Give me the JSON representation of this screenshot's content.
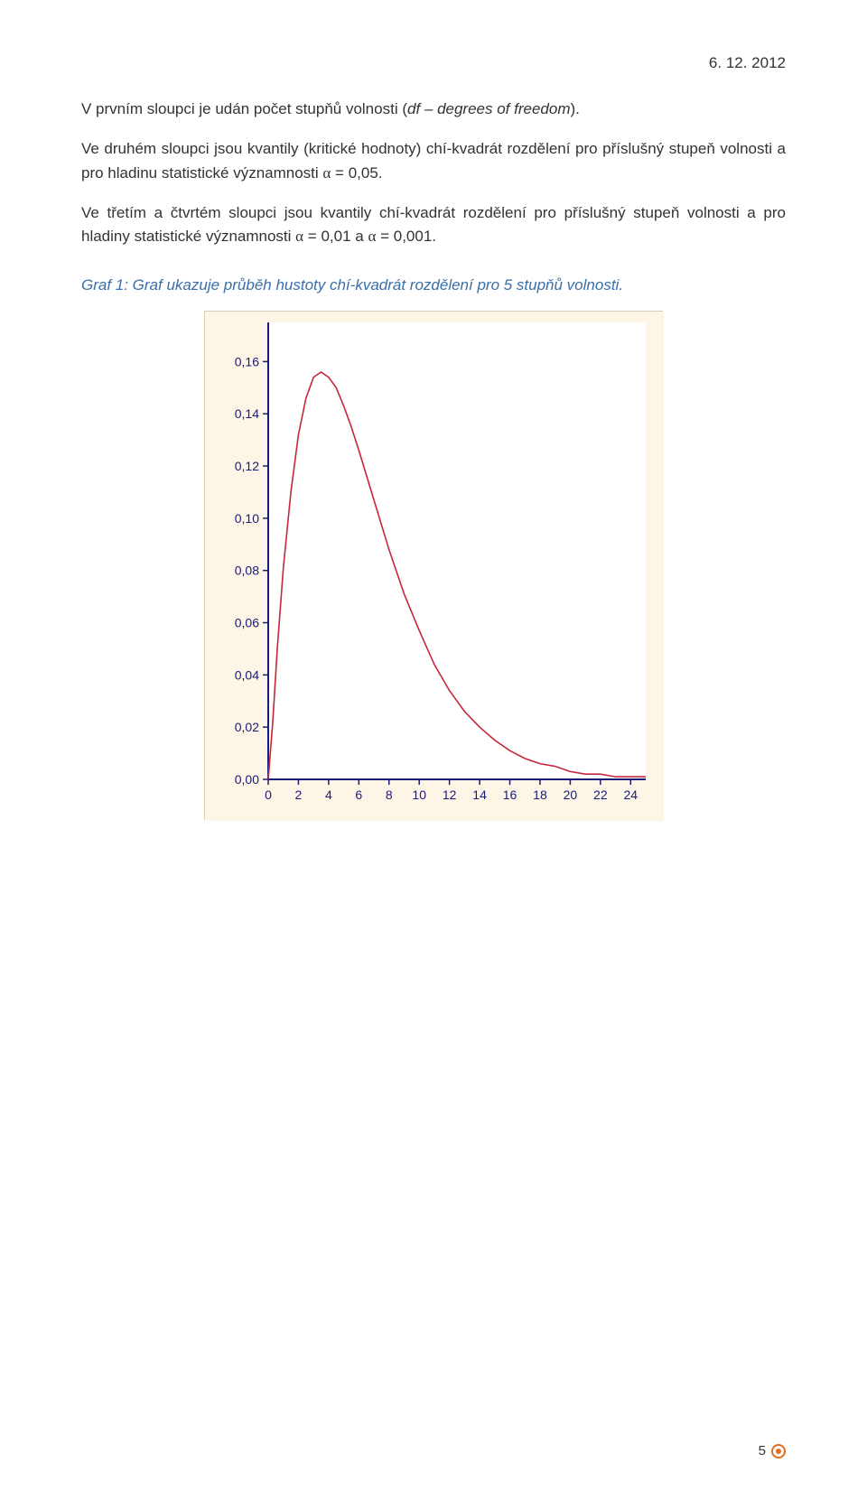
{
  "header": {
    "date": "6. 12. 2012"
  },
  "paragraphs": {
    "p1_a": "V prvním sloupci je udán počet stupňů volnosti (",
    "p1_i": "df – degrees of freedom",
    "p1_b": ").",
    "p2_a": "Ve druhém sloupci jsou kvantily (kritické hodnoty) chí-kvadrát rozdělení pro příslušný stupeň volnosti a pro hladinu statistické významnosti ",
    "p2_alpha": "α",
    "p2_b": " = 0,05.",
    "p3_a": "Ve třetím a čtvrtém sloupci jsou kvantily chí-kvadrát rozdělení pro příslušný stupeň volnosti a pro hladiny statistické významnosti  ",
    "p3_alpha1": "α",
    "p3_b": "  = 0,01 a  ",
    "p3_alpha2": "α",
    "p3_c": "  = 0,001."
  },
  "caption": "Graf 1: Graf ukazuje průběh hustoty chí-kvadrát rozdělení pro 5 stupňů volnosti.",
  "caption_color": "#3a6ea8",
  "chart": {
    "type": "line",
    "background_color": "#fdf5e6",
    "plot_bg": "#ffffff",
    "axis_color": "#1a1a7a",
    "curve_color": "#c6263e",
    "x": {
      "min": 0,
      "max": 25,
      "ticks": [
        0,
        2,
        4,
        6,
        8,
        10,
        12,
        14,
        16,
        18,
        20,
        22,
        24
      ]
    },
    "y": {
      "min": 0,
      "max": 0.175,
      "ticks": [
        0.0,
        0.02,
        0.04,
        0.06,
        0.08,
        0.1,
        0.12,
        0.14,
        0.16
      ],
      "labels": [
        "0,00",
        "0,02",
        "0,04",
        "0,06",
        "0,08",
        "0,10",
        "0,12",
        "0,14",
        "0,16"
      ]
    },
    "series": [
      [
        0.0,
        0.0
      ],
      [
        0.3,
        0.022
      ],
      [
        0.6,
        0.05
      ],
      [
        1.0,
        0.081
      ],
      [
        1.5,
        0.11
      ],
      [
        2.0,
        0.132
      ],
      [
        2.5,
        0.146
      ],
      [
        3.0,
        0.154
      ],
      [
        3.5,
        0.156
      ],
      [
        4.0,
        0.154
      ],
      [
        4.5,
        0.15
      ],
      [
        5.0,
        0.143
      ],
      [
        5.5,
        0.135
      ],
      [
        6.0,
        0.126
      ],
      [
        7.0,
        0.107
      ],
      [
        8.0,
        0.088
      ],
      [
        9.0,
        0.071
      ],
      [
        10.0,
        0.057
      ],
      [
        11.0,
        0.044
      ],
      [
        12.0,
        0.034
      ],
      [
        13.0,
        0.026
      ],
      [
        14.0,
        0.02
      ],
      [
        15.0,
        0.015
      ],
      [
        16.0,
        0.011
      ],
      [
        17.0,
        0.008
      ],
      [
        18.0,
        0.006
      ],
      [
        19.0,
        0.005
      ],
      [
        20.0,
        0.003
      ],
      [
        21.0,
        0.002
      ],
      [
        22.0,
        0.002
      ],
      [
        23.0,
        0.001
      ],
      [
        24.0,
        0.001
      ],
      [
        25.0,
        0.001
      ]
    ],
    "tick_fontsize": 14
  },
  "footer": {
    "page": "5"
  }
}
